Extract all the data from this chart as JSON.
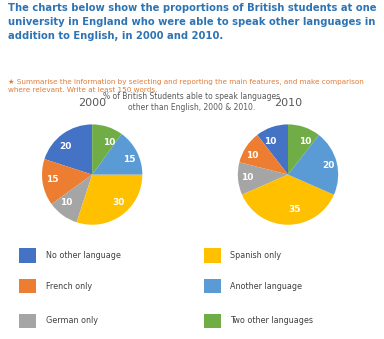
{
  "title_main": "The charts below show the proportions of British students at one university in England who were able to speak other languages in addition to English, in 2000 and 2010.",
  "subtitle": "★ Summarise the information by selecting and reporting the main features, and make comparison where relevant. Write at least 150 words.",
  "chart_title": "% of British Students able to speak languages\nother than English, 2000 & 2010.",
  "title_main_color": "#2E74B5",
  "subtitle_color": "#E07B39",
  "chart_title_color": "#595959",
  "year_2000": {
    "label": "2000",
    "values": [
      20,
      15,
      10,
      30,
      15,
      10
    ],
    "startangle": 90
  },
  "year_2010": {
    "label": "2010",
    "values": [
      10,
      10,
      10,
      35,
      20,
      10
    ],
    "startangle": 90
  },
  "categories": [
    "No other language",
    "French only",
    "German only",
    "Spanish only",
    "Another language",
    "Two other languages"
  ],
  "colors": [
    "#4472C4",
    "#ED7D31",
    "#A5A5A5",
    "#FFC000",
    "#5B9BD5",
    "#70AD47"
  ],
  "labels_2000": [
    "20",
    "15",
    "10",
    "30",
    "15",
    "10"
  ],
  "labels_2010": [
    "10",
    "10",
    "10",
    "35",
    "20",
    "10"
  ],
  "background_color": "#FFFFFF"
}
